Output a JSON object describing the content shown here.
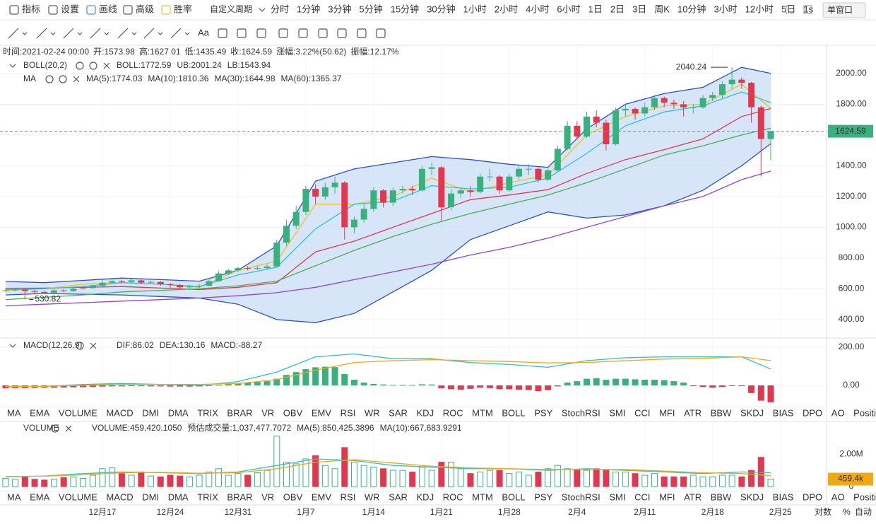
{
  "toolbar": {
    "tools": [
      "指标",
      "设置",
      "画线",
      "高级",
      "胜率"
    ],
    "custom_period": "自定义周期",
    "periods": [
      "分时",
      "1分钟",
      "3分钟",
      "5分钟",
      "15分钟",
      "30分钟",
      "1小时",
      "2小时",
      "4小时",
      "6小时",
      "1日",
      "2日",
      "3日",
      "周K",
      "10分钟",
      "3小时",
      "12小时",
      "5日",
      "1s"
    ],
    "active_period": 10,
    "window_button": "单窗口",
    "text_tool": "Aa"
  },
  "info": [
    {
      "label": "时间:",
      "value": "2021-02-24 00:00"
    },
    {
      "label": "开:",
      "value": "1573.98"
    },
    {
      "label": "高:",
      "value": "1627.01"
    },
    {
      "label": "低:",
      "value": "1435.49"
    },
    {
      "label": "收:",
      "value": "1624.59"
    },
    {
      "label": "涨幅:",
      "value": "3.22%(50.62)"
    },
    {
      "label": "振幅:",
      "value": "12.17%"
    }
  ],
  "chart": {
    "type": "candlestick",
    "up_color": "#3bb07f",
    "down_color": "#e0384f",
    "candles": [
      [
        588,
        600,
        580,
        590
      ],
      [
        590,
        602,
        585,
        595
      ],
      [
        595,
        600,
        530.82,
        585
      ],
      [
        585,
        592,
        570,
        580
      ],
      [
        580,
        588,
        565,
        575
      ],
      [
        575,
        598,
        570,
        590
      ],
      [
        590,
        596,
        578,
        585
      ],
      [
        585,
        608,
        580,
        600
      ],
      [
        600,
        612,
        592,
        605
      ],
      [
        605,
        628,
        600,
        620
      ],
      [
        620,
        660,
        615,
        640
      ],
      [
        640,
        668,
        630,
        650
      ],
      [
        650,
        660,
        635,
        645
      ],
      [
        645,
        665,
        638,
        655
      ],
      [
        655,
        662,
        630,
        640
      ],
      [
        640,
        655,
        632,
        645
      ],
      [
        645,
        650,
        620,
        630
      ],
      [
        630,
        640,
        600,
        625
      ],
      [
        625,
        632,
        595,
        610
      ],
      [
        610,
        625,
        600,
        615
      ],
      [
        615,
        630,
        605,
        620
      ],
      [
        620,
        660,
        615,
        650
      ],
      [
        650,
        715,
        645,
        700
      ],
      [
        700,
        730,
        690,
        720
      ],
      [
        720,
        745,
        710,
        735
      ],
      [
        735,
        748,
        720,
        730
      ],
      [
        730,
        750,
        722,
        735
      ],
      [
        735,
        760,
        725,
        745
      ],
      [
        745,
        920,
        740,
        900
      ],
      [
        900,
        1050,
        880,
        1010
      ],
      [
        1010,
        1140,
        990,
        1100
      ],
      [
        1100,
        1270,
        1080,
        1250
      ],
      [
        1250,
        1280,
        1150,
        1200
      ],
      [
        1200,
        1290,
        1180,
        1260
      ],
      [
        1260,
        1330,
        1220,
        1290
      ],
      [
        1290,
        1300,
        920,
        1000
      ],
      [
        1000,
        1070,
        960,
        1050
      ],
      [
        1050,
        1150,
        1030,
        1120
      ],
      [
        1120,
        1260,
        1100,
        1240
      ],
      [
        1240,
        1250,
        1130,
        1160
      ],
      [
        1160,
        1260,
        1140,
        1240
      ],
      [
        1240,
        1270,
        1220,
        1250
      ],
      [
        1250,
        1270,
        1210,
        1240
      ],
      [
        1240,
        1400,
        1230,
        1380
      ],
      [
        1380,
        1420,
        1340,
        1390
      ],
      [
        1390,
        1400,
        1040,
        1130
      ],
      [
        1130,
        1250,
        1110,
        1220
      ],
      [
        1220,
        1260,
        1190,
        1240
      ],
      [
        1240,
        1270,
        1200,
        1230
      ],
      [
        1230,
        1350,
        1220,
        1330
      ],
      [
        1330,
        1380,
        1300,
        1330
      ],
      [
        1330,
        1340,
        1220,
        1240
      ],
      [
        1240,
        1350,
        1230,
        1330
      ],
      [
        1330,
        1400,
        1310,
        1380
      ],
      [
        1380,
        1410,
        1340,
        1380
      ],
      [
        1380,
        1390,
        1290,
        1310
      ],
      [
        1310,
        1380,
        1300,
        1370
      ],
      [
        1370,
        1530,
        1360,
        1510
      ],
      [
        1510,
        1690,
        1500,
        1660
      ],
      [
        1660,
        1690,
        1570,
        1590
      ],
      [
        1590,
        1750,
        1580,
        1720
      ],
      [
        1720,
        1760,
        1650,
        1680
      ],
      [
        1680,
        1700,
        1500,
        1540
      ],
      [
        1540,
        1780,
        1530,
        1760
      ],
      [
        1760,
        1800,
        1720,
        1770
      ],
      [
        1770,
        1780,
        1700,
        1740
      ],
      [
        1740,
        1810,
        1720,
        1780
      ],
      [
        1780,
        1860,
        1760,
        1840
      ],
      [
        1840,
        1850,
        1780,
        1810
      ],
      [
        1810,
        1830,
        1770,
        1800
      ],
      [
        1800,
        1820,
        1720,
        1780
      ],
      [
        1780,
        1800,
        1740,
        1780
      ],
      [
        1780,
        1860,
        1770,
        1840
      ],
      [
        1840,
        1880,
        1820,
        1860
      ],
      [
        1860,
        1950,
        1840,
        1930
      ],
      [
        1930,
        2040.24,
        1900,
        1960
      ],
      [
        1960,
        1975,
        1900,
        1940
      ],
      [
        1940,
        1945,
        1680,
        1780
      ],
      [
        1780,
        1790,
        1330,
        1573.98
      ],
      [
        1573.98,
        1627.01,
        1435.49,
        1624.59
      ]
    ],
    "ylim": [
      294,
      2179
    ],
    "yticks": [
      {
        "value": 2000,
        "label": "2000.00"
      },
      {
        "value": 1800,
        "label": "1800.00"
      },
      {
        "value": 1600,
        "label": "1600.00"
      },
      {
        "value": 1400,
        "label": "1400.00"
      },
      {
        "value": 1200,
        "label": "1200.00"
      },
      {
        "value": 1000,
        "label": "1000.00"
      },
      {
        "value": 800,
        "label": "800.00"
      },
      {
        "value": 600,
        "label": "600.00"
      },
      {
        "value": 400,
        "label": "400.00"
      }
    ],
    "xticks": [
      {
        "value": 10,
        "label": "12月17"
      },
      {
        "value": 17,
        "label": "12月24"
      },
      {
        "value": 24,
        "label": "12月31"
      },
      {
        "value": 31,
        "label": "1月7"
      },
      {
        "value": 38,
        "label": "1月14"
      },
      {
        "value": 45,
        "label": "1月21"
      },
      {
        "value": 52,
        "label": "1月28"
      },
      {
        "value": 59,
        "label": "2月4"
      },
      {
        "value": 66,
        "label": "2月11"
      },
      {
        "value": 73,
        "label": "2月18"
      },
      {
        "value": 80,
        "label": "2月25"
      }
    ],
    "line_x": [
      0,
      4,
      8,
      12,
      16,
      20,
      24,
      28,
      32,
      36,
      40,
      44,
      48,
      52,
      56,
      60,
      64,
      68,
      72,
      76,
      79
    ],
    "overlay_titles": [
      "BOLL(20,2)",
      "MA"
    ],
    "boll": [
      {
        "label": "BOLL:1772.59",
        "color": "#e0384f",
        "values": [
          604,
          605,
          610,
          615,
          605,
          595,
          610,
          640,
          840,
          910,
          1000,
          1090,
          1180,
          1210,
          1245,
          1350,
          1440,
          1505,
          1575,
          1720,
          1772.59
        ]
      },
      {
        "label": "UB:2001.24",
        "color": "#2b4fcf",
        "values": [
          648,
          640,
          655,
          670,
          660,
          650,
          720,
          880,
          1300,
          1380,
          1420,
          1460,
          1440,
          1410,
          1390,
          1640,
          1800,
          1870,
          1910,
          2040,
          2001.24
        ]
      },
      {
        "label": "LB:1543.94",
        "color": "#2b4fcf",
        "values": [
          560,
          570,
          565,
          560,
          550,
          540,
          500,
          400,
          380,
          440,
          580,
          720,
          920,
          1010,
          1100,
          1060,
          1080,
          1140,
          1240,
          1400,
          1543.94
        ]
      }
    ],
    "ma": [
      {
        "label": "MA(5):1774.03",
        "color": "#f0c419",
        "values": [
          590,
          600,
          630,
          640,
          630,
          610,
          720,
          780,
          1150,
          1150,
          1200,
          1320,
          1230,
          1290,
          1340,
          1600,
          1720,
          1790,
          1800,
          1930,
          1774.03
        ]
      },
      {
        "label": "MA(10):1810.36",
        "color": "#31c0d6",
        "values": [
          595,
          600,
          615,
          640,
          630,
          615,
          690,
          740,
          990,
          1150,
          1170,
          1270,
          1250,
          1260,
          1320,
          1480,
          1660,
          1750,
          1790,
          1880,
          1810.36
        ]
      },
      {
        "label": "MA(30):1644.98",
        "color": "#4cae4f",
        "values": [
          530,
          545,
          560,
          580,
          590,
          600,
          620,
          650,
          750,
          850,
          940,
          1020,
          1090,
          1150,
          1210,
          1290,
          1380,
          1470,
          1530,
          1600,
          1644.98
        ]
      },
      {
        "label": "MA(60):1365.37",
        "color": "#8e44d8",
        "values": [
          490,
          500,
          510,
          520,
          530,
          540,
          555,
          575,
          610,
          660,
          710,
          760,
          820,
          870,
          930,
          1000,
          1070,
          1140,
          1200,
          1310,
          1365.37
        ]
      }
    ]
  },
  "macd": {
    "title": "MACD(12,26,9)",
    "hist_label": "MACD:-88.27",
    "hist": [
      -15,
      -14,
      -14,
      -13,
      -12,
      -12,
      -11,
      -10,
      -9,
      -8,
      -6,
      -5,
      -5,
      -4,
      -4,
      -5,
      -5,
      -6,
      -6,
      -6,
      -5,
      -3,
      2,
      8,
      12,
      15,
      18,
      22,
      35,
      55,
      70,
      85,
      95,
      98,
      96,
      60,
      30,
      15,
      8,
      5,
      3,
      2,
      2,
      6,
      5,
      -15,
      -20,
      -22,
      -18,
      -12,
      -14,
      -20,
      -20,
      -22,
      -24,
      -30,
      -25,
      -5,
      15,
      22,
      35,
      38,
      30,
      35,
      35,
      32,
      30,
      30,
      28,
      22,
      15,
      -4,
      -8,
      -12,
      -8,
      -2,
      -4,
      -40,
      -80,
      -88.27
    ],
    "lines": [
      {
        "label": "DIF:86.02",
        "color": "#31c0c6",
        "values": [
          -8,
          -5,
          5,
          10,
          5,
          0,
          20,
          70,
          150,
          165,
          140,
          140,
          120,
          110,
          95,
          130,
          145,
          150,
          150,
          150,
          86.02
        ]
      },
      {
        "label": "DEA:130.16",
        "color": "#f0a818",
        "values": [
          -5,
          -5,
          0,
          5,
          5,
          5,
          10,
          30,
          80,
          120,
          130,
          135,
          130,
          125,
          118,
          120,
          130,
          138,
          142,
          150,
          130.16
        ]
      }
    ],
    "ylim": [
      -111,
      241
    ],
    "yticks": [
      {
        "value": 200,
        "label": "200.00"
      },
      {
        "value": 0,
        "label": "0.00"
      }
    ]
  },
  "indicator_tabs": [
    "MA",
    "EMA",
    "VOLUME",
    "MACD",
    "DMI",
    "DMA",
    "TRIX",
    "BRAR",
    "VR",
    "OBV",
    "EMV",
    "RSI",
    "WR",
    "SAR",
    "KDJ",
    "ROC",
    "MTM",
    "BOLL",
    "PSY",
    "StochRSI",
    "SMI",
    "CCI",
    "MFI",
    "ATR",
    "BBW",
    "SKDJ",
    "BIAS",
    "DPO",
    "AO",
    "Position"
  ],
  "active_tabs": [
    3,
    2
  ],
  "volume": {
    "title": "VOLUME",
    "volume_label": "VOLUME:459,420.1050",
    "estimate_label": "预估成交量:1,037,477.7072",
    "values": [
      500000,
      450000,
      600000,
      450000,
      400000,
      450000,
      550000,
      600000,
      500000,
      700000,
      1100000,
      1150000,
      800000,
      700000,
      900000,
      650000,
      600000,
      700000,
      650000,
      600000,
      700000,
      900000,
      1100000,
      700000,
      800000,
      700000,
      850000,
      1000000,
      3100000,
      1500000,
      1400000,
      1700000,
      1900000,
      1300000,
      1100000,
      2400000,
      1500000,
      1300000,
      1200000,
      1100000,
      1000000,
      1000000,
      900000,
      1200000,
      1000000,
      1500000,
      1500000,
      1100000,
      800000,
      900000,
      1000000,
      1000000,
      800000,
      900000,
      700000,
      900000,
      1100000,
      1300000,
      1100000,
      1000000,
      1000000,
      1100000,
      1000000,
      900000,
      900000,
      800000,
      700000,
      800000,
      600000,
      600000,
      600000,
      700000,
      600000,
      600000,
      700000,
      700000,
      600000,
      1000000,
      1800000,
      459420.105
    ],
    "value_labels": {
      "79": "459.4k"
    },
    "lines": [
      {
        "label": "MA(5):850,425.3896",
        "color": "#31c0c6",
        "values": [
          600000,
          650000,
          800000,
          900000,
          850000,
          800000,
          900000,
          1300000,
          1700000,
          1600000,
          1300000,
          1200000,
          1100000,
          1100000,
          1000000,
          1100000,
          1000000,
          900000,
          800000,
          900000,
          850425.3896
        ]
      },
      {
        "label": "MA(10):667,683.9291",
        "color": "#f0a818",
        "values": [
          620000,
          640000,
          720000,
          850000,
          880000,
          820000,
          850000,
          1100000,
          1500000,
          1650000,
          1450000,
          1250000,
          1150000,
          1100000,
          1050000,
          1050000,
          1050000,
          950000,
          850000,
          800000,
          667683.9291
        ]
      }
    ],
    "ylim": [
      -300000,
      3960000
    ],
    "yticks": [
      {
        "value": 2000000,
        "label": "2.00M"
      },
      0
    ]
  },
  "footer": [
    "对数",
    "%",
    "自动"
  ]
}
